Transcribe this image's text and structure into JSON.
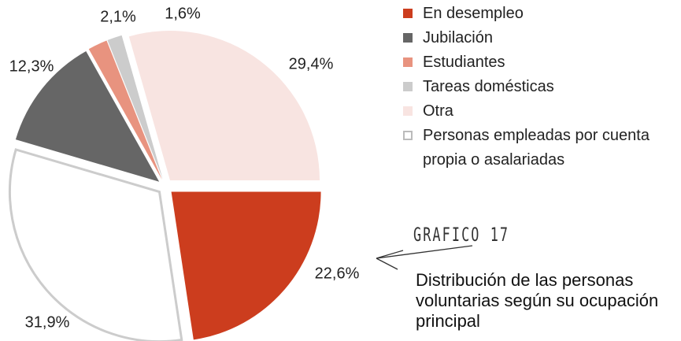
{
  "chart_data": {
    "type": "pie",
    "annotation": "GRAFICO 17",
    "title": "Distribución de las personas voluntarias según su ocupación principal",
    "categories": [
      "En desempleo",
      "Jubilación",
      "Estudiantes",
      "Tareas domésticas",
      "Otra",
      "Personas empleadas por cuenta propia o asalariadas"
    ],
    "values": [
      22.6,
      12.3,
      2.1,
      1.6,
      29.4,
      31.9
    ],
    "value_labels": [
      "22,6%",
      "12,3%",
      "2,1%",
      "1,6%",
      "29,4%",
      "31,9%"
    ],
    "colors": [
      "#cc3d1e",
      "#666666",
      "#e8937f",
      "#cccccc",
      "#f8e4e1",
      "#ffffff"
    ]
  }
}
